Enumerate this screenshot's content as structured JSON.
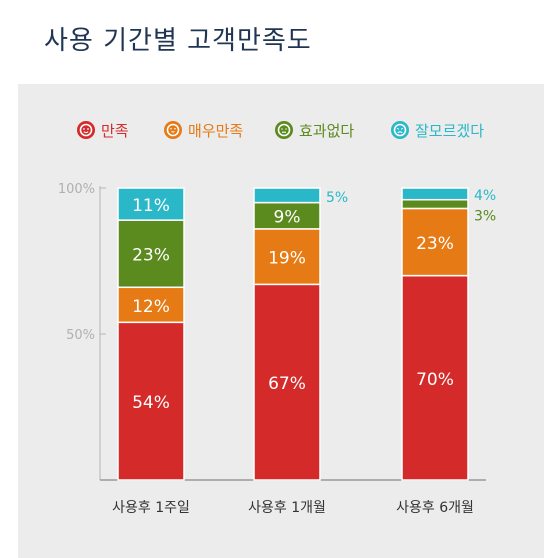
{
  "title": "사용 기간별 고객만족도",
  "legend": [
    {
      "label": "만족",
      "color": "#d42a2a",
      "icon": "smile-face-icon"
    },
    {
      "label": "매우만족",
      "color": "#e67a14",
      "icon": "happy-face-icon"
    },
    {
      "label": "효과없다",
      "color": "#5b8a1e",
      "icon": "neutral-face-icon"
    },
    {
      "label": "잘모르겠다",
      "color": "#2ab8c8",
      "icon": "confused-face-icon"
    }
  ],
  "chart_data": {
    "type": "bar",
    "stacked": true,
    "categories": [
      "사용후 1주일",
      "사용후 1개월",
      "사용후 6개월"
    ],
    "series": [
      {
        "name": "만족",
        "color": "#d42a2a",
        "values": [
          54,
          67,
          70
        ],
        "labels": [
          "54%",
          "67%",
          "70%"
        ]
      },
      {
        "name": "매우만족",
        "color": "#e67a14",
        "values": [
          12,
          19,
          23
        ],
        "labels": [
          "12%",
          "19%",
          "23%"
        ]
      },
      {
        "name": "효과없다",
        "color": "#5b8a1e",
        "values": [
          23,
          9,
          3
        ],
        "labels": [
          "23%",
          "9%",
          "3%"
        ]
      },
      {
        "name": "잘모르겠다",
        "color": "#2ab8c8",
        "values": [
          11,
          5,
          4
        ],
        "labels": [
          "11%",
          "5%",
          "4%"
        ]
      }
    ],
    "yticks": [
      {
        "value": 50,
        "label": "50%"
      },
      {
        "value": 100,
        "label": "100%"
      }
    ],
    "ylim": [
      0,
      100
    ],
    "grid": false,
    "legend_position": "top"
  }
}
